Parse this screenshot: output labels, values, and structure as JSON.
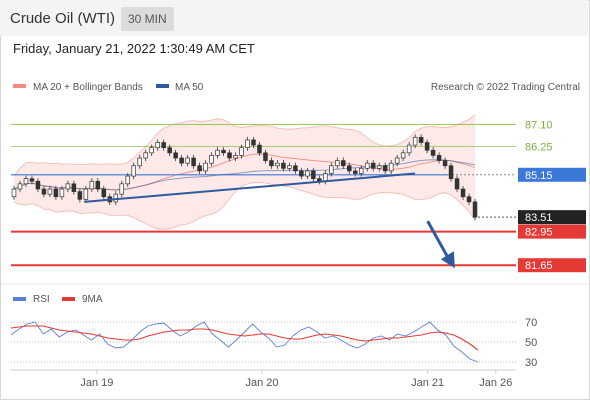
{
  "header": {
    "title": "Crude Oil (WTI)",
    "timeframe": "30 MIN"
  },
  "datetime": "Friday, January 21, 2022 1:30:49 AM CET",
  "watermark": "Research © 2022 Trading Central",
  "colors": {
    "bollinger": "#f28b82",
    "ma50": "#2e5a9e",
    "candle": "#333333",
    "resistance": "#8bc34a",
    "support": "#e53935",
    "pivot": "#3b78d8",
    "price_tag": "#222222",
    "rsi": "#5b7fd6",
    "rsi_ma": "#e53935"
  },
  "chart_data": [
    {
      "type": "candlestick",
      "legend": [
        "MA 20 + Bollinger Bands",
        "MA 50"
      ],
      "x_tick_labels": [
        "Jan 19",
        "Jan 20",
        "Jan 21",
        "Jan 26"
      ],
      "ylim": [
        81.0,
        88.2
      ],
      "levels": [
        {
          "label": "87.10",
          "value": 87.1,
          "kind": "resistance"
        },
        {
          "label": "86.25",
          "value": 86.25,
          "kind": "resistance"
        },
        {
          "label": "85.15",
          "value": 85.15,
          "kind": "pivot"
        },
        {
          "label": "83.51",
          "value": 83.51,
          "kind": "last"
        },
        {
          "label": "82.95",
          "value": 82.95,
          "kind": "support"
        },
        {
          "label": "81.65",
          "value": 81.65,
          "kind": "support"
        }
      ],
      "trendline": [
        [
          0.145,
          84.1
        ],
        [
          0.8,
          85.2
        ]
      ],
      "projection": [
        [
          0.825,
          83.51
        ],
        [
          0.875,
          81.65
        ]
      ],
      "candles": [
        [
          84.3,
          84.6
        ],
        [
          84.6,
          84.8
        ],
        [
          84.8,
          85.0
        ],
        [
          85.0,
          84.9
        ],
        [
          84.9,
          84.6
        ],
        [
          84.6,
          84.4
        ],
        [
          84.4,
          84.6
        ],
        [
          84.6,
          84.3
        ],
        [
          84.3,
          84.6
        ],
        [
          84.6,
          84.8
        ],
        [
          84.8,
          84.5
        ],
        [
          84.5,
          84.2
        ],
        [
          84.2,
          84.6
        ],
        [
          84.6,
          84.9
        ],
        [
          84.9,
          84.6
        ],
        [
          84.6,
          84.3
        ],
        [
          84.3,
          84.1
        ],
        [
          84.1,
          84.4
        ],
        [
          84.4,
          84.8
        ],
        [
          84.8,
          85.1
        ],
        [
          85.1,
          85.5
        ],
        [
          85.5,
          85.8
        ],
        [
          85.8,
          86.0
        ],
        [
          86.0,
          86.2
        ],
        [
          86.2,
          86.4
        ],
        [
          86.4,
          86.2
        ],
        [
          86.2,
          86.0
        ],
        [
          86.0,
          85.8
        ],
        [
          85.8,
          85.6
        ],
        [
          85.6,
          85.8
        ],
        [
          85.8,
          85.5
        ],
        [
          85.5,
          85.3
        ],
        [
          85.3,
          85.6
        ],
        [
          85.6,
          85.9
        ],
        [
          85.9,
          86.1
        ],
        [
          86.1,
          86.0
        ],
        [
          86.0,
          85.8
        ],
        [
          85.8,
          85.9
        ],
        [
          85.9,
          86.2
        ],
        [
          86.2,
          86.5
        ],
        [
          86.5,
          86.3
        ],
        [
          86.3,
          86.0
        ],
        [
          86.0,
          85.7
        ],
        [
          85.7,
          85.5
        ],
        [
          85.5,
          85.6
        ],
        [
          85.6,
          85.4
        ],
        [
          85.4,
          85.5
        ],
        [
          85.5,
          85.3
        ],
        [
          85.3,
          85.1
        ],
        [
          85.1,
          85.3
        ],
        [
          85.3,
          85.0
        ],
        [
          85.0,
          84.9
        ],
        [
          84.9,
          85.2
        ],
        [
          85.2,
          85.5
        ],
        [
          85.5,
          85.7
        ],
        [
          85.7,
          85.5
        ],
        [
          85.5,
          85.3
        ],
        [
          85.3,
          85.2
        ],
        [
          85.2,
          85.4
        ],
        [
          85.4,
          85.6
        ],
        [
          85.6,
          85.4
        ],
        [
          85.4,
          85.5
        ],
        [
          85.5,
          85.3
        ],
        [
          85.3,
          85.6
        ],
        [
          85.6,
          85.8
        ],
        [
          85.8,
          86.0
        ],
        [
          86.0,
          86.3
        ],
        [
          86.3,
          86.6
        ],
        [
          86.6,
          86.4
        ],
        [
          86.4,
          86.1
        ],
        [
          86.1,
          85.9
        ],
        [
          85.9,
          85.7
        ],
        [
          85.7,
          85.5
        ],
        [
          85.5,
          85.0
        ],
        [
          85.0,
          84.6
        ],
        [
          84.6,
          84.3
        ],
        [
          84.3,
          84.1
        ],
        [
          84.1,
          83.51
        ]
      ]
    },
    {
      "type": "line",
      "title": "RSI",
      "legend": [
        "RSI",
        "9MA"
      ],
      "ylim": [
        20,
        80
      ],
      "y_tick_labels": [
        "70",
        "50",
        "30"
      ],
      "series": [
        {
          "name": "RSI",
          "values": [
            57,
            63,
            68,
            70,
            58,
            63,
            55,
            60,
            62,
            57,
            52,
            58,
            48,
            44,
            45,
            52,
            60,
            66,
            68,
            69,
            62,
            56,
            60,
            66,
            70,
            58,
            52,
            45,
            52,
            60,
            68,
            60,
            54,
            45,
            47,
            56,
            62,
            65,
            60,
            54,
            56,
            52,
            47,
            44,
            48,
            54,
            56,
            52,
            58,
            56,
            60,
            65,
            70,
            62,
            57,
            46,
            40,
            33,
            30
          ]
        },
        {
          "name": "9MA",
          "values": [
            64,
            65,
            66,
            66,
            66,
            64,
            62,
            61,
            60,
            59,
            58,
            56,
            54,
            53,
            52,
            52,
            53,
            56,
            58,
            60,
            61,
            62,
            62,
            63,
            63,
            62,
            60,
            58,
            57,
            56,
            57,
            58,
            58,
            56,
            54,
            53,
            53,
            55,
            57,
            58,
            57,
            56,
            54,
            52,
            51,
            52,
            53,
            54,
            54,
            55,
            56,
            57,
            59,
            60,
            59,
            57,
            53,
            48,
            42
          ]
        }
      ]
    }
  ]
}
